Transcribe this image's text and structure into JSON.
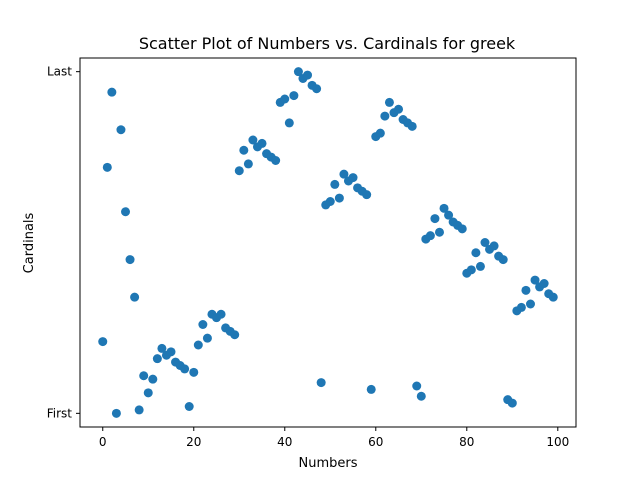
{
  "chart_data": {
    "type": "scatter",
    "title": "Scatter Plot of Numbers vs. Cardinals for greek",
    "xlabel": "Numbers",
    "ylabel": "Cardinals",
    "xlim": [
      -5,
      104
    ],
    "ylim": [
      -0.04,
      1.04
    ],
    "x_ticks": [
      {
        "value": 0,
        "label": "0"
      },
      {
        "value": 20,
        "label": "20"
      },
      {
        "value": 40,
        "label": "40"
      },
      {
        "value": 60,
        "label": "60"
      },
      {
        "value": 80,
        "label": "80"
      },
      {
        "value": 100,
        "label": "100"
      }
    ],
    "y_ticks": [
      {
        "value": 0,
        "label": "First"
      },
      {
        "value": 1,
        "label": "Last"
      }
    ],
    "grid": false,
    "point_color": "#1f77b4",
    "x": [
      0,
      1,
      2,
      3,
      4,
      5,
      6,
      7,
      8,
      9,
      10,
      11,
      12,
      13,
      14,
      15,
      16,
      17,
      18,
      19,
      20,
      21,
      22,
      23,
      24,
      25,
      26,
      27,
      28,
      29,
      30,
      31,
      32,
      33,
      34,
      35,
      36,
      37,
      38,
      39,
      40,
      41,
      42,
      43,
      44,
      45,
      46,
      47,
      48,
      49,
      50,
      51,
      52,
      53,
      54,
      55,
      56,
      57,
      58,
      59,
      60,
      61,
      62,
      63,
      64,
      65,
      66,
      67,
      68,
      69,
      70,
      71,
      72,
      73,
      74,
      75,
      76,
      77,
      78,
      79,
      80,
      81,
      82,
      83,
      84,
      85,
      86,
      87,
      88,
      89,
      90,
      91,
      92,
      93,
      94,
      95,
      96,
      97,
      98,
      99
    ],
    "y": [
      0.21,
      0.72,
      0.94,
      0.0,
      0.83,
      0.59,
      0.45,
      0.34,
      0.01,
      0.11,
      0.06,
      0.1,
      0.16,
      0.19,
      0.17,
      0.18,
      0.15,
      0.14,
      0.13,
      0.02,
      0.12,
      0.2,
      0.26,
      0.22,
      0.29,
      0.28,
      0.29,
      0.25,
      0.24,
      0.23,
      0.71,
      0.77,
      0.73,
      0.8,
      0.78,
      0.79,
      0.76,
      0.75,
      0.74,
      0.91,
      0.92,
      0.85,
      0.93,
      1.0,
      0.98,
      0.99,
      0.96,
      0.95,
      0.09,
      0.61,
      0.62,
      0.67,
      0.63,
      0.7,
      0.68,
      0.69,
      0.66,
      0.65,
      0.64,
      0.07,
      0.81,
      0.82,
      0.87,
      0.91,
      0.88,
      0.89,
      0.86,
      0.85,
      0.84,
      0.08,
      0.05,
      0.51,
      0.52,
      0.57,
      0.53,
      0.6,
      0.58,
      0.56,
      0.55,
      0.54,
      0.41,
      0.42,
      0.47,
      0.43,
      0.5,
      0.48,
      0.49,
      0.46,
      0.45,
      0.04,
      0.03,
      0.3,
      0.31,
      0.36,
      0.32,
      0.39,
      0.37,
      0.38,
      0.35,
      0.34
    ]
  }
}
